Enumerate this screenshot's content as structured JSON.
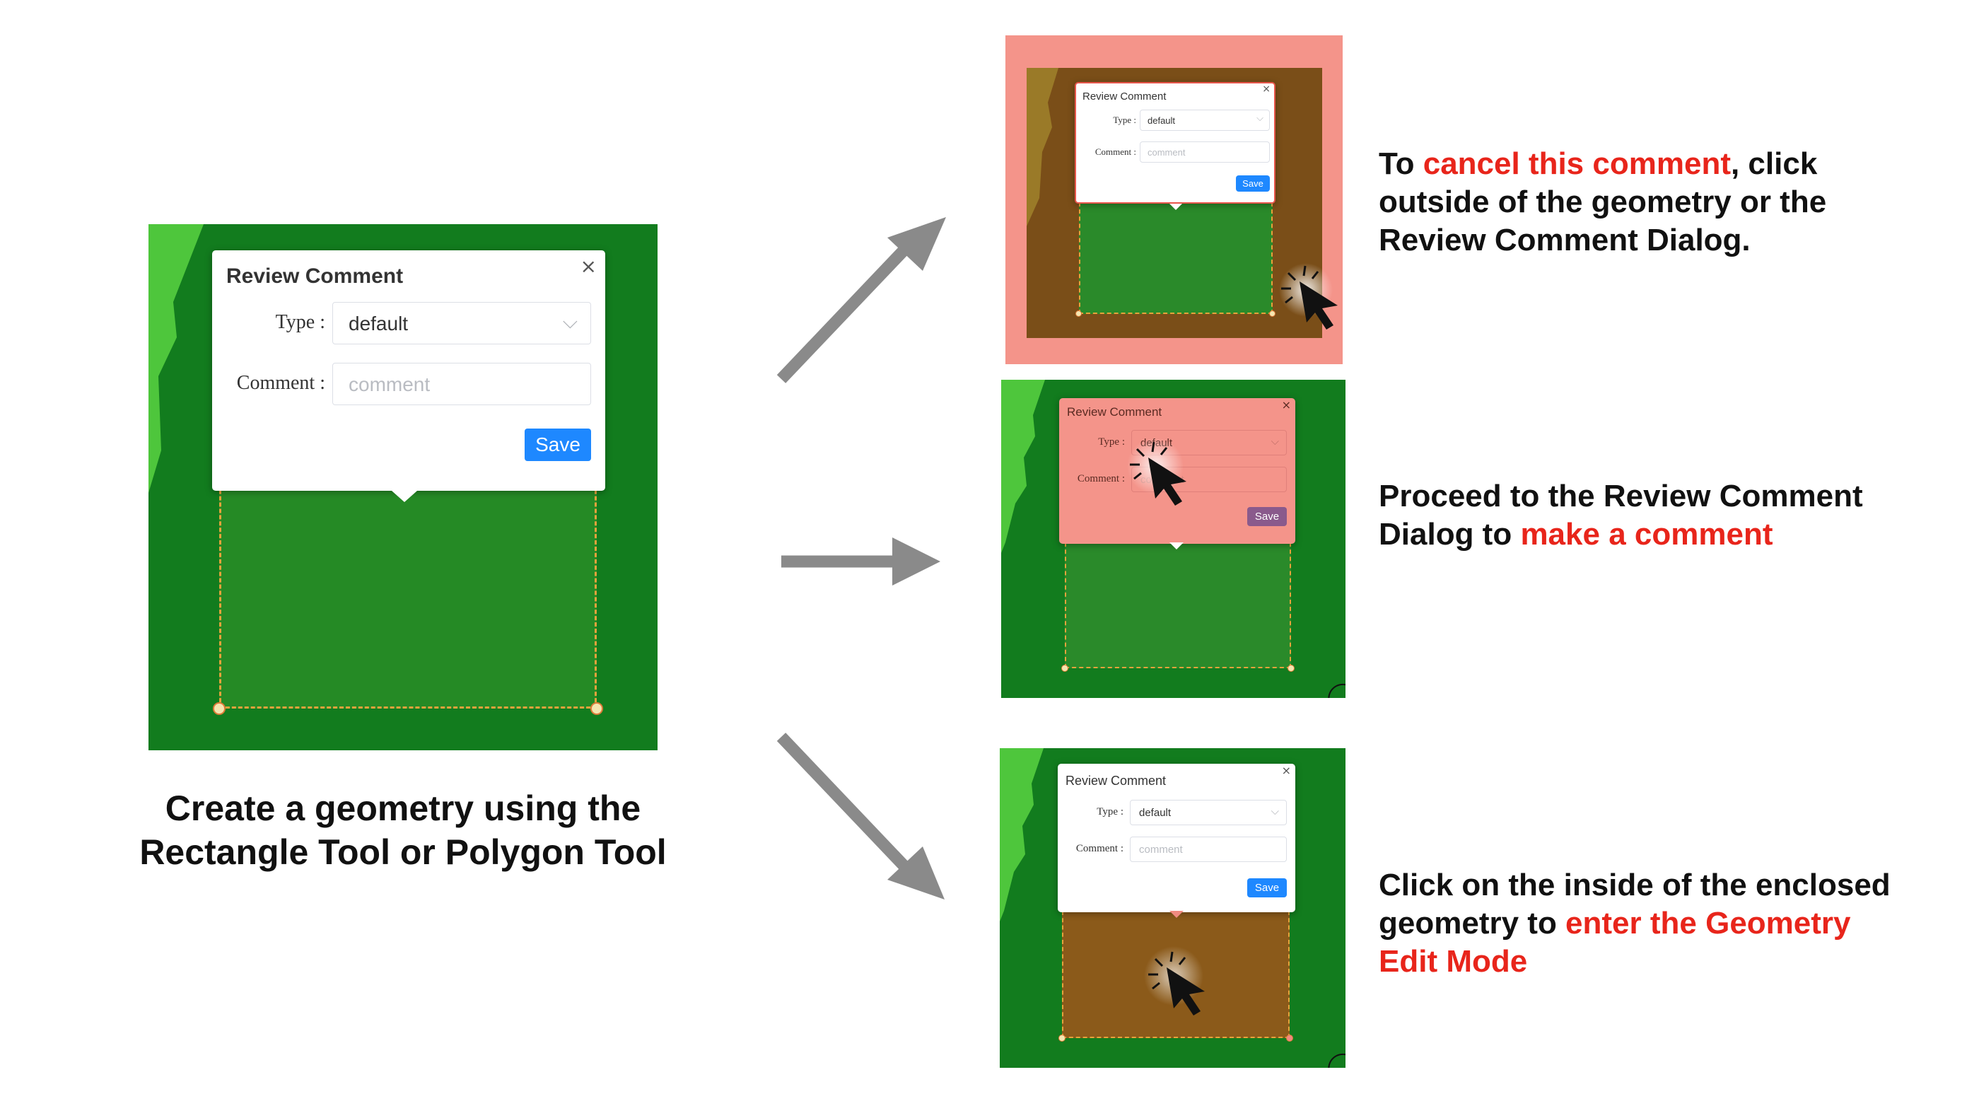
{
  "dialog": {
    "title": "Review Comment",
    "close_glyph": "×",
    "type_label": "Type :",
    "type_value": "default",
    "comment_label": "Comment :",
    "comment_placeholder": "comment",
    "save_label": "Save"
  },
  "left_caption": {
    "line1": "Create a geometry using the",
    "line2": "Rectangle Tool or Polygon Tool"
  },
  "step_cancel": {
    "prefix": "To ",
    "highlight": "cancel this comment",
    "line1_suffix": ", click",
    "line2": "outside of the geometry or the",
    "line3": "Review Comment Dialog."
  },
  "step_comment": {
    "line1": "Proceed to the Review Comment",
    "line2_prefix": "Dialog to ",
    "highlight": "make a comment"
  },
  "step_edit": {
    "line1": "Click on the inside of the enclosed",
    "line2_prefix": "geometry to ",
    "highlight_line2": "enter the Geometry",
    "highlight_line3": "Edit Mode"
  },
  "colors": {
    "map_green": "#127c1e",
    "geometry_fill": "#2a8a2a",
    "highlight_red": "#e8251b",
    "overlay_pink": "#f08a80",
    "edit_brown": "#8b5a1a",
    "save_blue": "#1e88ff",
    "arrow_gray": "#8a8a8a"
  },
  "icons": [
    "close-icon",
    "chevron-down-icon",
    "cursor-arrow-icon",
    "arrow-icon"
  ]
}
